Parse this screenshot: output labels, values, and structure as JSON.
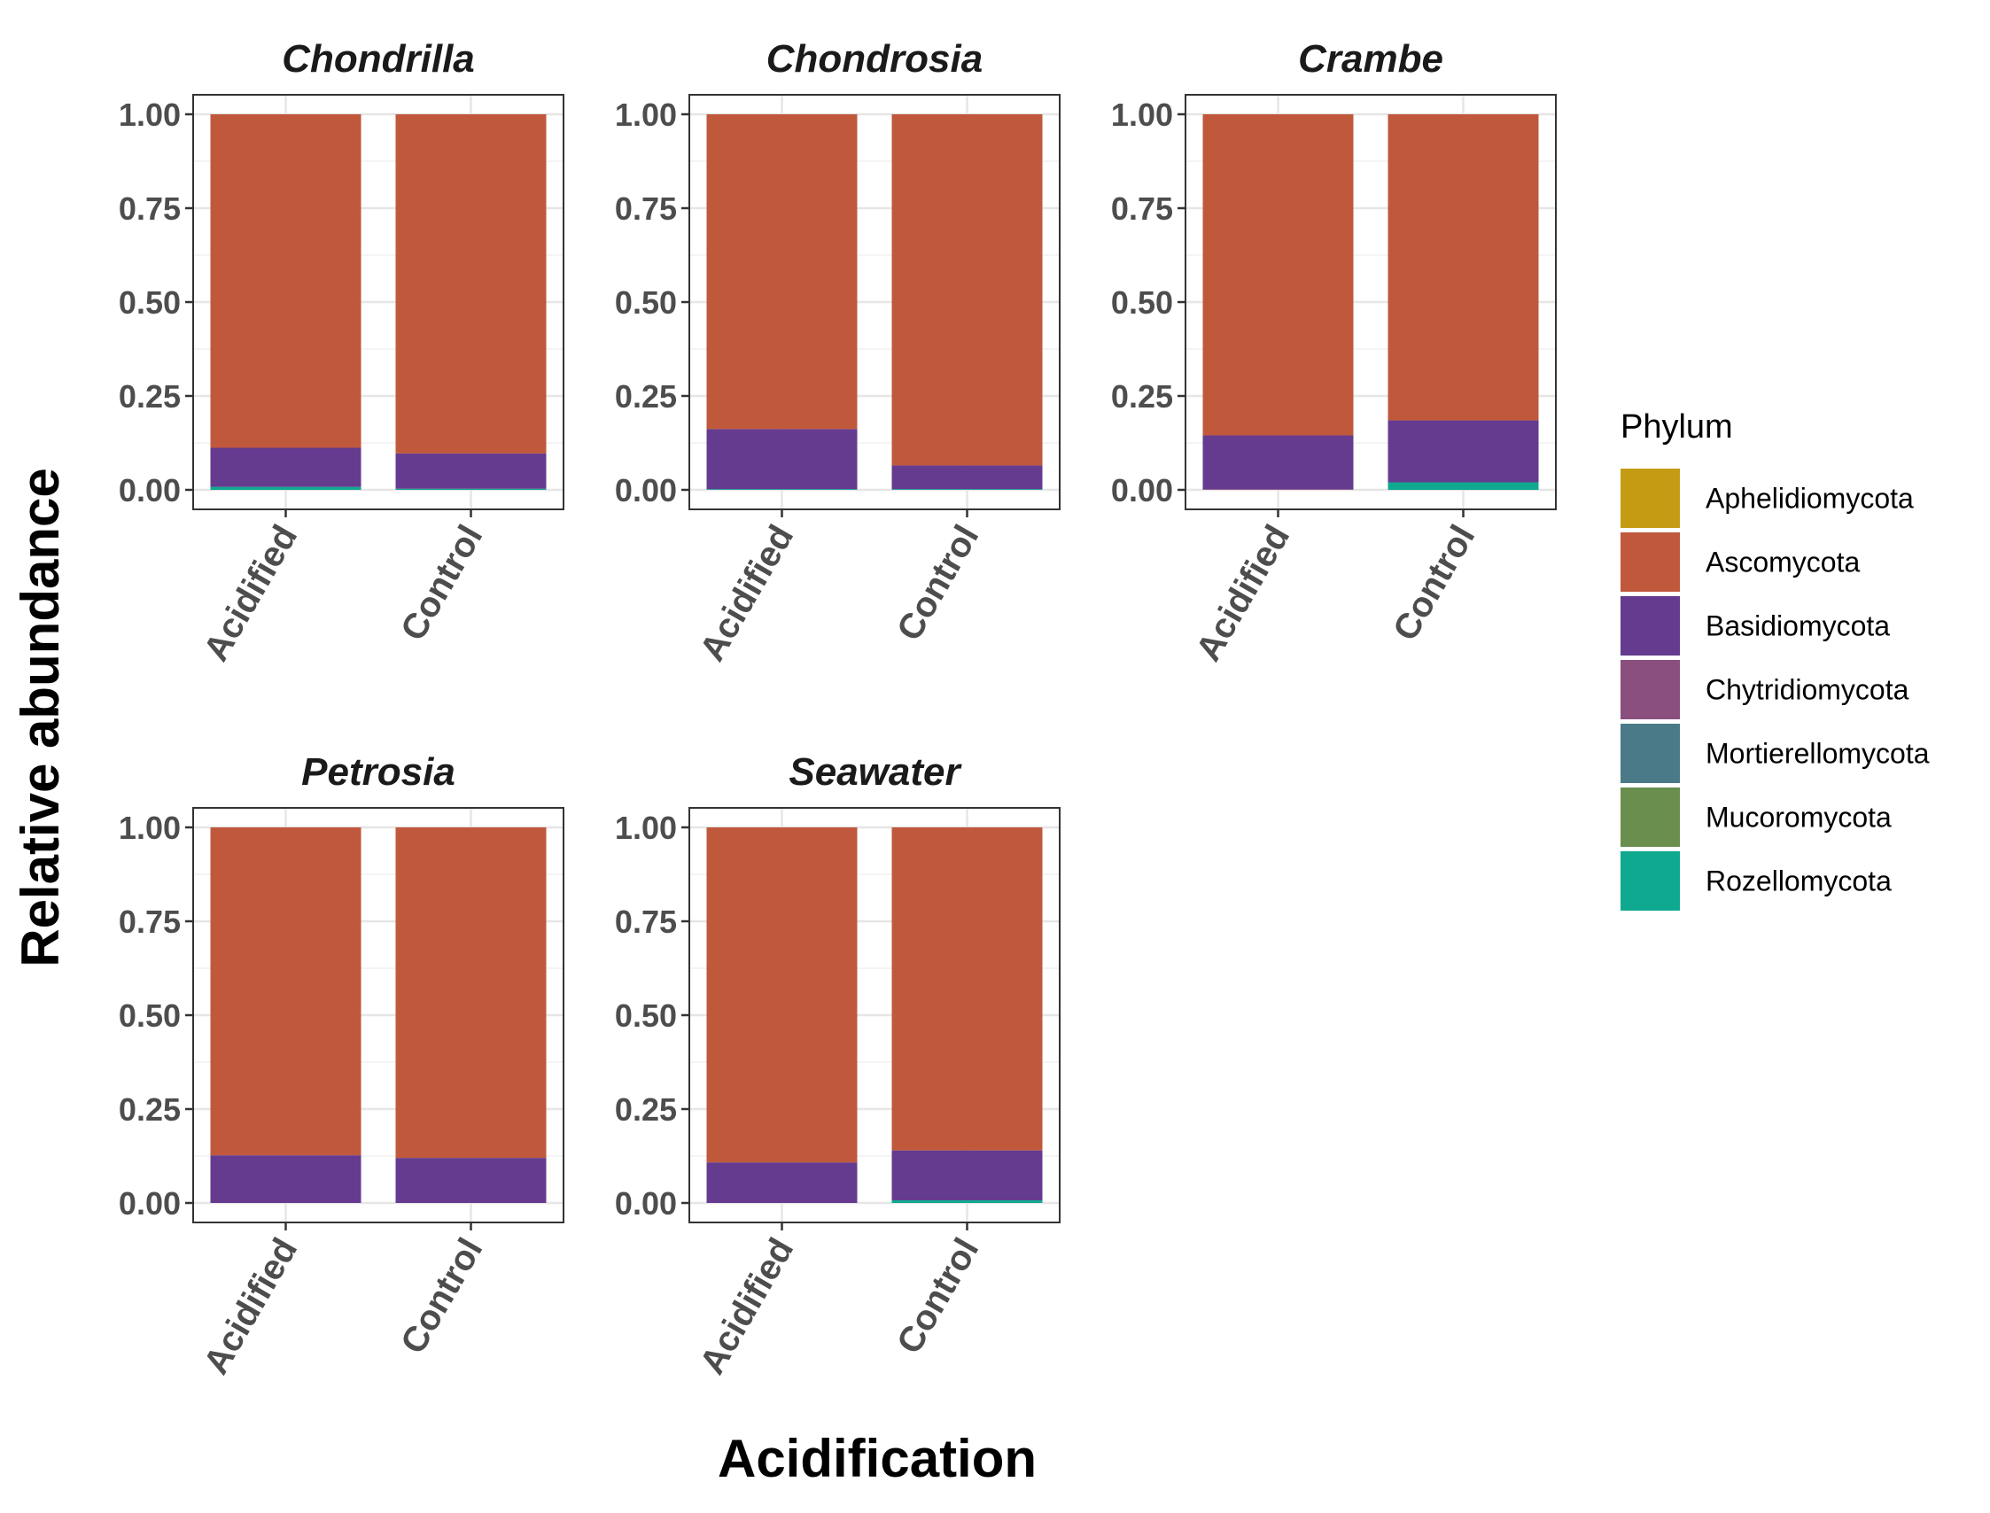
{
  "chart_data": {
    "type": "bar",
    "stacked": true,
    "xlabel": "Acidification",
    "ylabel": "Relative abundance",
    "ylim": [
      0,
      1
    ],
    "y_ticks": [
      "0.00",
      "0.25",
      "0.50",
      "0.75",
      "1.00"
    ],
    "y_tick_values": [
      0,
      0.25,
      0.5,
      0.75,
      1
    ],
    "categories": [
      "Acidified",
      "Control"
    ],
    "grid": true,
    "legend": {
      "title": "Phylum",
      "placement": "right",
      "entries": [
        {
          "name": "Aphelidiomycota",
          "color": "#C49C14"
        },
        {
          "name": "Ascomycota",
          "color": "#C0583C"
        },
        {
          "name": "Basidiomycota",
          "color": "#643B8F"
        },
        {
          "name": "Chytridiomycota",
          "color": "#8A4F7D"
        },
        {
          "name": "Mortierellomycota",
          "color": "#4A7A87"
        },
        {
          "name": "Mucoromycota",
          "color": "#6A8E4E"
        },
        {
          "name": "Rozellomycota",
          "color": "#0FA990"
        }
      ]
    },
    "panels": [
      {
        "title": "Chondrilla",
        "bars": [
          {
            "category": "Acidified",
            "values": {
              "Aphelidiomycota": 0,
              "Ascomycota": 0.888,
              "Basidiomycota": 0.104,
              "Chytridiomycota": 0,
              "Mortierellomycota": 0,
              "Mucoromycota": 0,
              "Rozellomycota": 0.008
            }
          },
          {
            "category": "Control",
            "values": {
              "Aphelidiomycota": 0,
              "Ascomycota": 0.903,
              "Basidiomycota": 0.094,
              "Chytridiomycota": 0,
              "Mortierellomycota": 0,
              "Mucoromycota": 0,
              "Rozellomycota": 0.003
            }
          }
        ]
      },
      {
        "title": "Chondrosia",
        "bars": [
          {
            "category": "Acidified",
            "values": {
              "Aphelidiomycota": 0,
              "Ascomycota": 0.838,
              "Basidiomycota": 0.16,
              "Chytridiomycota": 0,
              "Mortierellomycota": 0,
              "Mucoromycota": 0,
              "Rozellomycota": 0.002
            }
          },
          {
            "category": "Control",
            "values": {
              "Aphelidiomycota": 0,
              "Ascomycota": 0.935,
              "Basidiomycota": 0.063,
              "Chytridiomycota": 0,
              "Mortierellomycota": 0,
              "Mucoromycota": 0,
              "Rozellomycota": 0.002
            }
          }
        ]
      },
      {
        "title": "Crambe",
        "bars": [
          {
            "category": "Acidified",
            "values": {
              "Aphelidiomycota": 0,
              "Ascomycota": 0.855,
              "Basidiomycota": 0.143,
              "Chytridiomycota": 0.002,
              "Mortierellomycota": 0,
              "Mucoromycota": 0,
              "Rozellomycota": 0
            }
          },
          {
            "category": "Control",
            "values": {
              "Aphelidiomycota": 0,
              "Ascomycota": 0.815,
              "Basidiomycota": 0.165,
              "Chytridiomycota": 0,
              "Mortierellomycota": 0,
              "Mucoromycota": 0,
              "Rozellomycota": 0.02
            }
          }
        ]
      },
      {
        "title": "Petrosia",
        "bars": [
          {
            "category": "Acidified",
            "values": {
              "Aphelidiomycota": 0,
              "Ascomycota": 0.873,
              "Basidiomycota": 0.127,
              "Chytridiomycota": 0,
              "Mortierellomycota": 0,
              "Mucoromycota": 0,
              "Rozellomycota": 0
            }
          },
          {
            "category": "Control",
            "values": {
              "Aphelidiomycota": 0,
              "Ascomycota": 0.88,
              "Basidiomycota": 0.12,
              "Chytridiomycota": 0,
              "Mortierellomycota": 0,
              "Mucoromycota": 0,
              "Rozellomycota": 0
            }
          }
        ]
      },
      {
        "title": "Seawater",
        "bars": [
          {
            "category": "Acidified",
            "values": {
              "Aphelidiomycota": 0,
              "Ascomycota": 0.892,
              "Basidiomycota": 0.108,
              "Chytridiomycota": 0,
              "Mortierellomycota": 0,
              "Mucoromycota": 0,
              "Rozellomycota": 0
            }
          },
          {
            "category": "Control",
            "values": {
              "Aphelidiomycota": 0,
              "Ascomycota": 0.86,
              "Basidiomycota": 0.133,
              "Chytridiomycota": 0,
              "Mortierellomycota": 0,
              "Mucoromycota": 0,
              "Rozellomycota": 0.007
            }
          }
        ]
      }
    ]
  }
}
